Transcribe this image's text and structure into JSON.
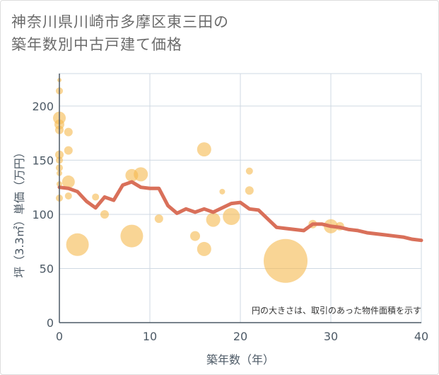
{
  "chart_data": {
    "type": "scatter",
    "title_line1": "神奈川県川崎市多摩区東三田の",
    "title_line2": "築年数別中古戸建て価格",
    "xlabel": "築年数（年）",
    "ylabel": "坪（3.3㎡）単価（万円）",
    "xlim": [
      0,
      40
    ],
    "ylim": [
      0,
      230
    ],
    "x_ticks": [
      0,
      10,
      20,
      30,
      40
    ],
    "y_ticks": [
      0,
      50,
      100,
      150,
      200
    ],
    "note": "円の大きさは、取引のあった物件面積を示す",
    "colors": {
      "bubble": "#f5b94e",
      "line": "#d9705a",
      "grid": "#cfd9e3",
      "axis": "#4d5a66"
    },
    "points": [
      {
        "x": 0,
        "y": 224,
        "size": 3
      },
      {
        "x": 0,
        "y": 214,
        "size": 5
      },
      {
        "x": 0,
        "y": 189,
        "size": 9
      },
      {
        "x": 0,
        "y": 183,
        "size": 7
      },
      {
        "x": 0,
        "y": 178,
        "size": 6
      },
      {
        "x": 0,
        "y": 155,
        "size": 6
      },
      {
        "x": 0,
        "y": 150,
        "size": 5
      },
      {
        "x": 0,
        "y": 143,
        "size": 5
      },
      {
        "x": 0,
        "y": 138,
        "size": 4
      },
      {
        "x": 0,
        "y": 128,
        "size": 4
      },
      {
        "x": 0,
        "y": 115,
        "size": 5
      },
      {
        "x": 1,
        "y": 176,
        "size": 6
      },
      {
        "x": 1,
        "y": 159,
        "size": 6
      },
      {
        "x": 1,
        "y": 130,
        "size": 9
      },
      {
        "x": 1,
        "y": 117,
        "size": 5
      },
      {
        "x": 2,
        "y": 72,
        "size": 16
      },
      {
        "x": 4,
        "y": 116,
        "size": 5
      },
      {
        "x": 5,
        "y": 100,
        "size": 6
      },
      {
        "x": 8,
        "y": 136,
        "size": 9
      },
      {
        "x": 8,
        "y": 80,
        "size": 16
      },
      {
        "x": 9,
        "y": 137,
        "size": 10
      },
      {
        "x": 11,
        "y": 96,
        "size": 6
      },
      {
        "x": 15,
        "y": 80,
        "size": 7
      },
      {
        "x": 16,
        "y": 160,
        "size": 10
      },
      {
        "x": 16,
        "y": 68,
        "size": 10
      },
      {
        "x": 17,
        "y": 95,
        "size": 10
      },
      {
        "x": 18,
        "y": 121,
        "size": 4
      },
      {
        "x": 19,
        "y": 98,
        "size": 12
      },
      {
        "x": 21,
        "y": 140,
        "size": 5
      },
      {
        "x": 21,
        "y": 122,
        "size": 6
      },
      {
        "x": 25,
        "y": 57,
        "size": 31
      },
      {
        "x": 28,
        "y": 91,
        "size": 6
      },
      {
        "x": 30,
        "y": 89,
        "size": 10
      },
      {
        "x": 31,
        "y": 89,
        "size": 6
      }
    ],
    "trend": {
      "x": [
        0,
        1,
        2,
        3,
        4,
        5,
        6,
        7,
        8,
        9,
        10,
        11,
        12,
        13,
        14,
        15,
        16,
        17,
        18,
        19,
        20,
        21,
        22,
        23,
        24,
        25,
        26,
        27,
        28,
        29,
        30,
        31,
        32,
        33,
        34,
        35,
        36,
        37,
        38,
        39,
        40
      ],
      "y": [
        125,
        124,
        121,
        112,
        106,
        116,
        113,
        127,
        130,
        125,
        124,
        124,
        108,
        101,
        105,
        102,
        105,
        102,
        106,
        110,
        111,
        105,
        104,
        96,
        88,
        87,
        86,
        85,
        91,
        91,
        89,
        88,
        86,
        85,
        83,
        82,
        81,
        80,
        79,
        77,
        76
      ]
    }
  }
}
